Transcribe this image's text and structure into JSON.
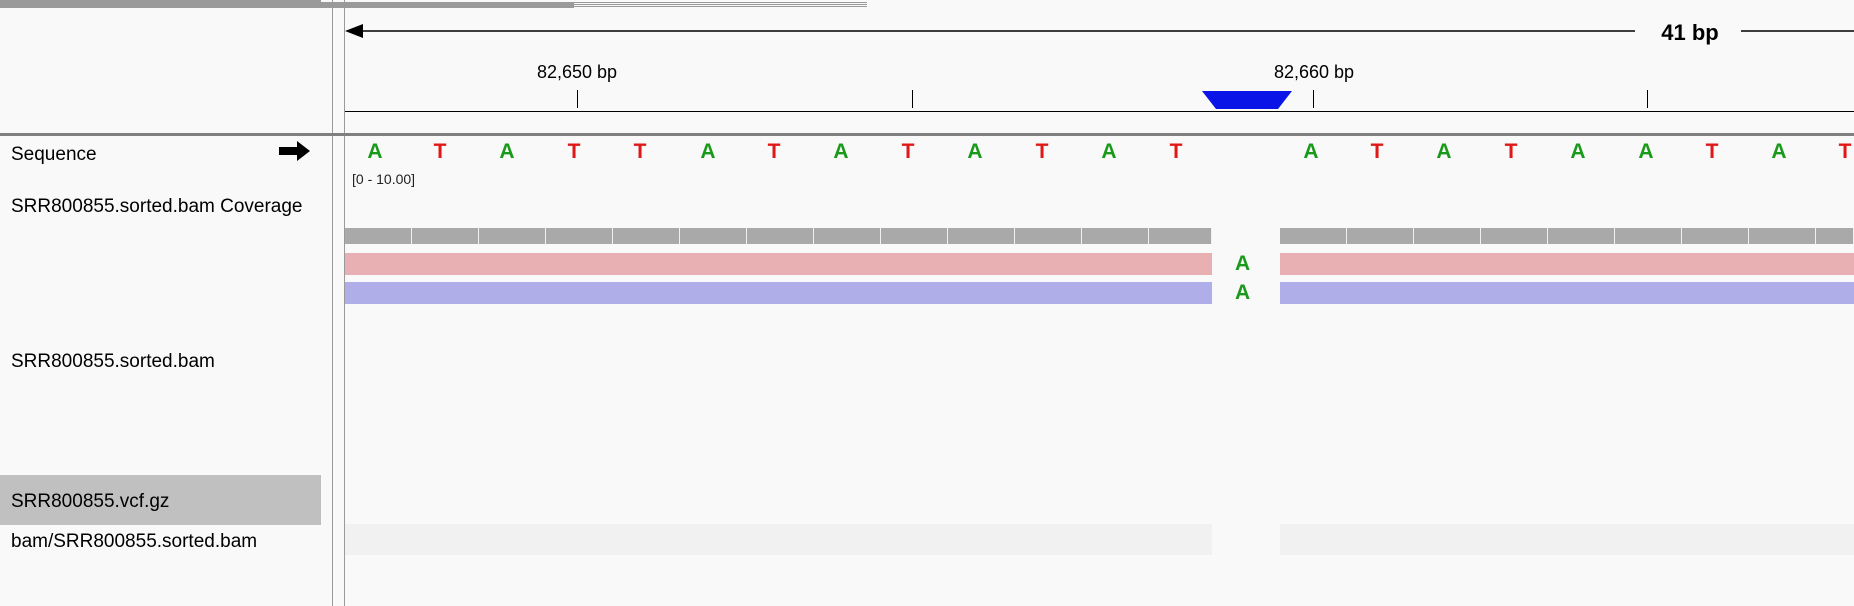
{
  "ruler": {
    "span_label": "41 bp",
    "labels": [
      "82,650 bp",
      "82,660 bp"
    ]
  },
  "tracks": {
    "sequence": "Sequence",
    "coverage": "SRR800855.sorted.bam Coverage",
    "coverage_range": "[0 - 10.00]",
    "alignment": "SRR800855.sorted.bam",
    "vcf": "SRR800855.vcf.gz",
    "junctions": "bam/SRR800855.sorted.bam"
  },
  "sequence_bases": [
    "A",
    "T",
    "A",
    "T",
    "T",
    "A",
    "T",
    "A",
    "T",
    "A",
    "T",
    "A",
    "T",
    "",
    "A",
    "T",
    "A",
    "T",
    "A",
    "A",
    "T",
    "A",
    "T"
  ],
  "insertion": {
    "base_read1": "A",
    "base_read2": "A"
  },
  "colors": {
    "base_A": "#1a9a1a",
    "base_T": "#e01818",
    "read_forward": "#e8b0b2",
    "read_reverse": "#b0aee8",
    "coverage": "#a9a9a9",
    "insertion_marker": "#0a14e6",
    "selected_track": "#c0c0c0"
  },
  "icons": {
    "strand": "right-arrow-icon"
  }
}
